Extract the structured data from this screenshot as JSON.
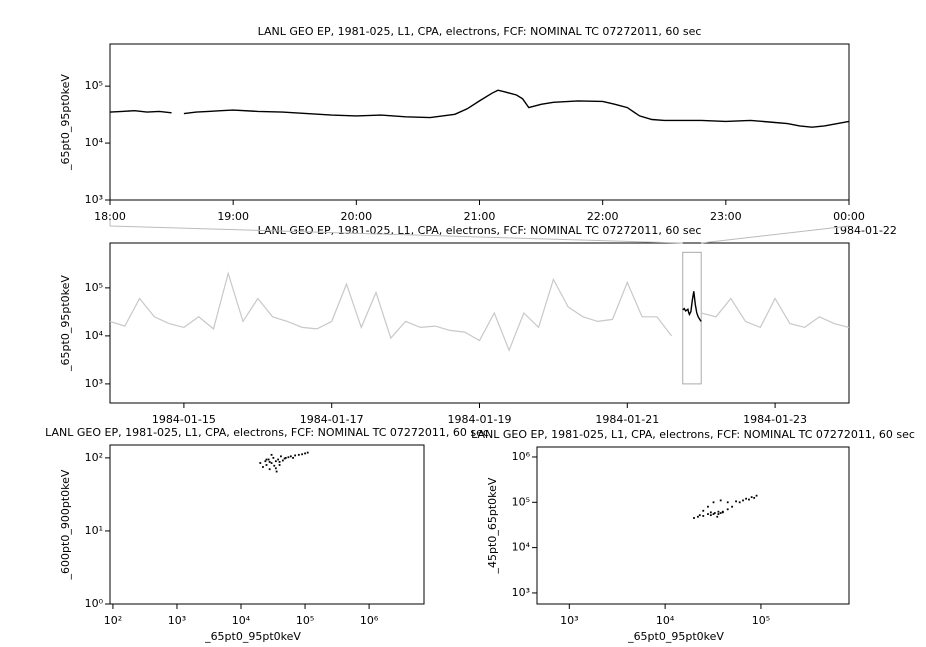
{
  "chart_data": [
    {
      "type": "line",
      "title": "LANL GEO EP, 1981-025, L1, CPA, electrons, FCF: NOMINAL TC 07272011, 60 sec",
      "ylabel": "_65pt0_95pt0keV",
      "log_y": true,
      "log_x": false,
      "xlim": [
        18,
        24
      ],
      "ylim": [
        1000,
        550000
      ],
      "xticks": [
        {
          "value": 18,
          "label": "18:00"
        },
        {
          "value": 19,
          "label": "19:00"
        },
        {
          "value": 20,
          "label": "20:00"
        },
        {
          "value": 21,
          "label": "21:00"
        },
        {
          "value": 22,
          "label": "22:00"
        },
        {
          "value": 23,
          "label": "23:00"
        },
        {
          "value": 24,
          "label": "00:00"
        }
      ],
      "date_label": "1984-01-22",
      "yticks": [
        {
          "value": 1000,
          "label": "10³"
        },
        {
          "value": 10000,
          "label": "10⁴"
        },
        {
          "value": 100000,
          "label": "10⁵"
        }
      ],
      "series": [
        {
          "color": "#000000",
          "x": [
            18.0,
            18.1,
            18.2,
            18.3,
            18.4,
            18.5,
            18.55,
            18.6,
            18.7,
            18.8,
            18.9,
            19.0,
            19.2,
            19.4,
            19.6,
            19.8,
            20.0,
            20.2,
            20.4,
            20.6,
            20.8,
            20.9,
            21.0,
            21.1,
            21.15,
            21.2,
            21.3,
            21.35,
            21.4,
            21.5,
            21.6,
            21.8,
            22.0,
            22.1,
            22.2,
            22.3,
            22.4,
            22.5,
            22.6,
            22.8,
            23.0,
            23.2,
            23.4,
            23.5,
            23.6,
            23.7,
            23.8,
            24.0
          ],
          "values": [
            35000,
            36000,
            37000,
            35000,
            36000,
            34000,
            null,
            33000,
            35000,
            36000,
            37000,
            38000,
            36000,
            35000,
            33000,
            31000,
            30000,
            31000,
            29000,
            28000,
            32000,
            40000,
            55000,
            75000,
            85000,
            80000,
            70000,
            60000,
            42000,
            48000,
            52000,
            55000,
            54000,
            48000,
            42000,
            30000,
            26000,
            25000,
            25000,
            25000,
            24000,
            25000,
            23000,
            22000,
            20000,
            19000,
            20000,
            24000
          ]
        }
      ]
    },
    {
      "type": "line",
      "title": "LANL GEO EP, 1981-025, L1, CPA, electrons, FCF: NOMINAL TC 07272011, 60 sec",
      "ylabel": "_65pt0_95pt0keV",
      "log_y": true,
      "log_x": false,
      "xlim": [
        14,
        24
      ],
      "ylim": [
        400,
        860000
      ],
      "xticks": [
        {
          "value": 15,
          "label": "1984-01-15"
        },
        {
          "value": 17,
          "label": "1984-01-17"
        },
        {
          "value": 19,
          "label": "1984-01-19"
        },
        {
          "value": 21,
          "label": "1984-01-21"
        },
        {
          "value": 23,
          "label": "1984-01-23"
        }
      ],
      "yticks": [
        {
          "value": 1000,
          "label": "10³"
        },
        {
          "value": 10000,
          "label": "10⁴"
        },
        {
          "value": 100000,
          "label": "10⁵"
        }
      ],
      "highlight_range": [
        21.75,
        22.0
      ],
      "series": [
        {
          "color": "#c8c8c8",
          "x": [
            14.0,
            14.2,
            14.4,
            14.6,
            14.8,
            15.0,
            15.2,
            15.4,
            15.6,
            15.8,
            16.0,
            16.2,
            16.4,
            16.6,
            16.8,
            17.0,
            17.2,
            17.4,
            17.6,
            17.8,
            18.0,
            18.2,
            18.4,
            18.6,
            18.8,
            19.0,
            19.2,
            19.4,
            19.6,
            19.8,
            20.0,
            20.2,
            20.4,
            20.6,
            20.8,
            21.0,
            21.2,
            21.4,
            21.6,
            21.8,
            22.0,
            22.2,
            22.4,
            22.6,
            22.8,
            23.0,
            23.2,
            23.4,
            23.6,
            23.8,
            24.0
          ],
          "values": [
            20000,
            16000,
            60000,
            25000,
            18000,
            15000,
            25000,
            14000,
            200000,
            20000,
            60000,
            25000,
            20000,
            15000,
            14000,
            20000,
            120000,
            15000,
            80000,
            9000,
            20000,
            15000,
            16000,
            13000,
            12000,
            8000,
            30000,
            5000,
            30000,
            15000,
            150000,
            40000,
            25000,
            20000,
            22000,
            130000,
            25000,
            25000,
            10000,
            null,
            30000,
            25000,
            60000,
            20000,
            15000,
            60000,
            18000,
            15000,
            25000,
            18000,
            15000
          ]
        },
        {
          "color": "#000000",
          "x": [
            21.75,
            21.77,
            21.79,
            21.8,
            21.82,
            21.83,
            21.84,
            21.86,
            21.88,
            21.9,
            21.92,
            21.94,
            21.96,
            21.98,
            22.0
          ],
          "values": [
            35000,
            37000,
            33000,
            34000,
            36000,
            31000,
            28000,
            32000,
            55000,
            85000,
            45000,
            30000,
            25000,
            22000,
            20000
          ]
        }
      ]
    },
    {
      "type": "scatter",
      "title": "LANL GEO EP, 1981-025, L1, CPA, electrons, FCF: NOMINAL TC 07272011, 60 sec",
      "xlabel": "_65pt0_95pt0keV",
      "ylabel": "_600pt0_900pt0keV",
      "log_x": true,
      "log_y": true,
      "xlim": [
        90,
        7200000
      ],
      "ylim": [
        1,
        150
      ],
      "color": "#000000",
      "xticks": [
        {
          "value": 100,
          "label": "10²"
        },
        {
          "value": 1000,
          "label": "10³"
        },
        {
          "value": 10000,
          "label": "10⁴"
        },
        {
          "value": 100000,
          "label": "10⁵"
        },
        {
          "value": 1000000,
          "label": "10⁶"
        }
      ],
      "yticks": [
        {
          "value": 1,
          "label": "10⁰"
        },
        {
          "value": 10,
          "label": "10¹"
        },
        {
          "value": 100,
          "label": "10²"
        }
      ],
      "x": [
        20000,
        22000,
        24000,
        25000,
        27000,
        28000,
        30000,
        32000,
        33000,
        35000,
        36000,
        38000,
        40000,
        42000,
        45000,
        48000,
        50000,
        55000,
        60000,
        65000,
        70000,
        80000,
        90000,
        100000,
        110000,
        25000,
        30000,
        35000,
        40000,
        28000
      ],
      "values": [
        85,
        75,
        90,
        80,
        95,
        70,
        85,
        100,
        78,
        90,
        65,
        95,
        88,
        105,
        92,
        98,
        100,
        102,
        105,
        100,
        108,
        110,
        112,
        115,
        118,
        95,
        110,
        72,
        80,
        88
      ]
    },
    {
      "type": "scatter",
      "title": "LANL GEO EP, 1981-025, L1, CPA, electrons, FCF: NOMINAL TC 07272011, 60 sec",
      "xlabel": "_65pt0_95pt0keV",
      "ylabel": "_45pt0_65pt0keV",
      "log_x": true,
      "log_y": true,
      "xlim": [
        460,
        830000
      ],
      "ylim": [
        570,
        1660000
      ],
      "color": "#000000",
      "xticks": [
        {
          "value": 1000,
          "label": "10³"
        },
        {
          "value": 10000,
          "label": "10⁴"
        },
        {
          "value": 100000,
          "label": "10⁵"
        }
      ],
      "yticks": [
        {
          "value": 1000,
          "label": "10³"
        },
        {
          "value": 10000,
          "label": "10⁴"
        },
        {
          "value": 100000,
          "label": "10⁵"
        },
        {
          "value": 1000000,
          "label": "10⁶"
        }
      ],
      "x": [
        20000,
        22000,
        25000,
        28000,
        30000,
        33000,
        36000,
        40000,
        45000,
        50000,
        60000,
        70000,
        80000,
        90000,
        85000,
        75000,
        65000,
        55000,
        45000,
        38000,
        32000,
        28000,
        25000,
        23000,
        30000,
        35000,
        40000,
        32000,
        36000,
        38000
      ],
      "values": [
        45000,
        48000,
        50000,
        55000,
        60000,
        58000,
        55000,
        62000,
        70000,
        80000,
        100000,
        120000,
        130000,
        140000,
        125000,
        115000,
        110000,
        105000,
        100000,
        110000,
        100000,
        80000,
        65000,
        52000,
        52000,
        48000,
        60000,
        55000,
        62000,
        58000
      ]
    }
  ]
}
